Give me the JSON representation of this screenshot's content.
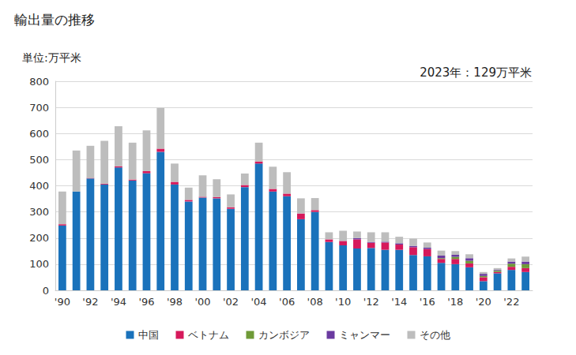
{
  "chart_data": {
    "type": "bar",
    "title": "輸出量の推移",
    "subtitle": "単位:万平米",
    "annotations": [
      "2023年：129万平米"
    ],
    "categories": [
      "'90",
      null,
      "'92",
      null,
      "'94",
      null,
      "'96",
      null,
      "'98",
      null,
      "'00",
      null,
      "'02",
      null,
      "'04",
      null,
      "'06",
      null,
      "'08",
      null,
      "'10",
      null,
      "'12",
      null,
      "'14",
      null,
      "'16",
      null,
      "'18",
      null,
      "'20",
      null,
      "'22",
      null
    ],
    "series": [
      {
        "name": "中国",
        "color": "#1a72bb",
        "values": [
          248,
          378,
          428,
          405,
          470,
          420,
          448,
          530,
          405,
          340,
          355,
          352,
          312,
          395,
          485,
          378,
          360,
          272,
          300,
          185,
          172,
          160,
          162,
          155,
          155,
          135,
          130,
          105,
          100,
          88,
          35,
          65,
          78,
          70
        ]
      },
      {
        "name": "ベトナム",
        "color": "#d6195b",
        "values": [
          5,
          0,
          2,
          3,
          5,
          4,
          8,
          12,
          10,
          6,
          3,
          5,
          6,
          8,
          8,
          10,
          10,
          22,
          7,
          10,
          17,
          35,
          20,
          28,
          20,
          30,
          28,
          15,
          20,
          15,
          15,
          5,
          12,
          15
        ]
      },
      {
        "name": "カンボジア",
        "color": "#6f9a37",
        "values": [
          0,
          0,
          0,
          0,
          0,
          0,
          0,
          0,
          0,
          0,
          0,
          0,
          0,
          0,
          0,
          0,
          0,
          0,
          0,
          0,
          0,
          0,
          0,
          0,
          0,
          0,
          0,
          3,
          8,
          10,
          5,
          5,
          12,
          15
        ]
      },
      {
        "name": "ミャンマー",
        "color": "#6a3aa0",
        "values": [
          0,
          0,
          0,
          0,
          0,
          0,
          0,
          0,
          0,
          0,
          0,
          0,
          0,
          0,
          0,
          0,
          0,
          0,
          0,
          0,
          0,
          5,
          3,
          3,
          5,
          5,
          5,
          10,
          8,
          10,
          8,
          3,
          8,
          10
        ]
      },
      {
        "name": "その他",
        "color": "#bdbdbd",
        "values": [
          125,
          157,
          123,
          164,
          153,
          141,
          156,
          156,
          70,
          47,
          82,
          68,
          49,
          44,
          72,
          85,
          82,
          58,
          46,
          27,
          39,
          25,
          37,
          36,
          25,
          28,
          20,
          19,
          14,
          15,
          7,
          7,
          12,
          19
        ]
      }
    ],
    "ylim": [
      0,
      800
    ],
    "yticks": [
      0,
      100,
      200,
      300,
      400,
      500,
      600,
      700,
      800
    ],
    "stacked": true,
    "grid": true,
    "legend": "bottom"
  }
}
